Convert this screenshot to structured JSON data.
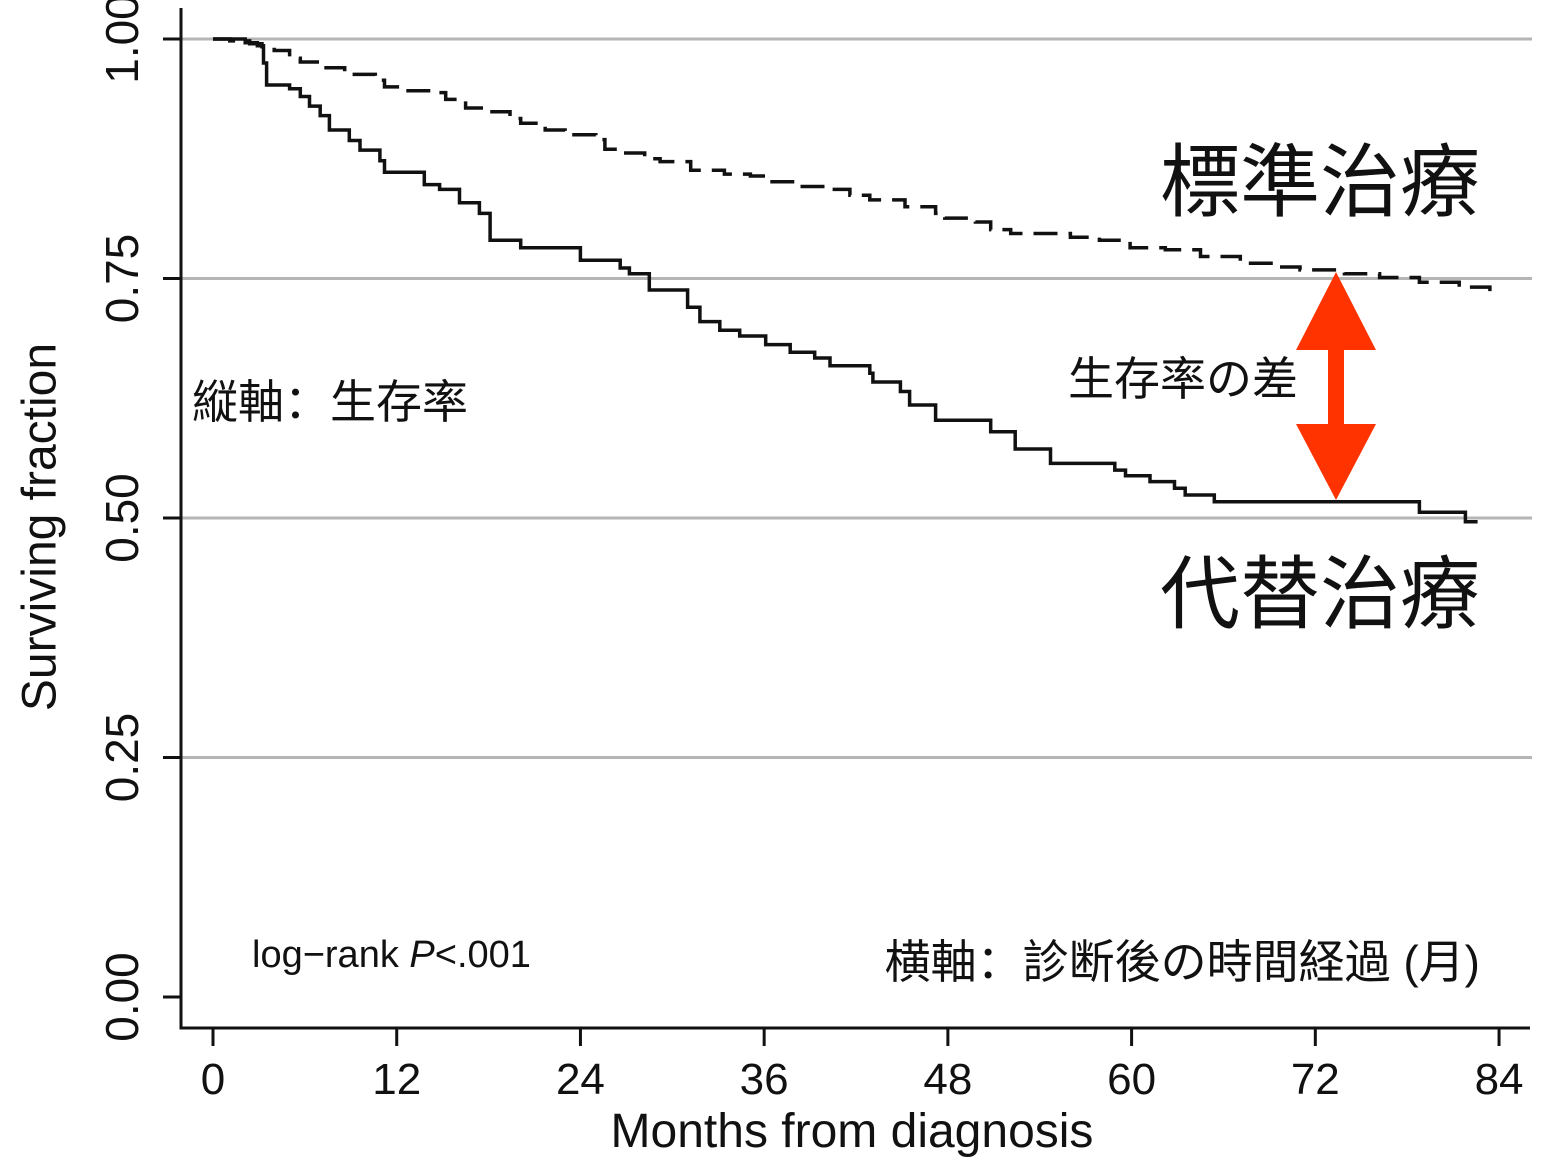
{
  "colors": {
    "background": "#ffffff",
    "axis": "#111111",
    "grid": "#b5b5b5",
    "series_line": "#111111",
    "arrow": "#ff3300"
  },
  "chart_data": {
    "type": "line",
    "step": true,
    "title": "",
    "xlabel": "Months from diagnosis",
    "ylabel": "Surviving fraction",
    "xticks": [
      "0",
      "12",
      "24",
      "36",
      "48",
      "60",
      "72",
      "84"
    ],
    "yticks": [
      "0.00",
      "0.25",
      "0.50",
      "0.75",
      "1.00"
    ],
    "xlim": [
      0,
      84
    ],
    "ylim": [
      0,
      1
    ],
    "grid": "horizontal",
    "legend": "none",
    "series": [
      {
        "name": "標準治療",
        "line_style": "dashed",
        "points": [
          [
            0,
            1.0
          ],
          [
            1.1,
            0.998
          ],
          [
            2.4,
            0.995
          ],
          [
            3.2,
            0.992
          ],
          [
            4.0,
            0.988
          ],
          [
            5.0,
            0.98
          ],
          [
            5.7,
            0.976
          ],
          [
            7.0,
            0.97
          ],
          [
            8.6,
            0.963
          ],
          [
            10.6,
            0.957
          ],
          [
            11.2,
            0.95
          ],
          [
            12.2,
            0.946
          ],
          [
            14.2,
            0.944
          ],
          [
            15.2,
            0.937
          ],
          [
            16.5,
            0.928
          ],
          [
            18.1,
            0.924
          ],
          [
            19.4,
            0.917
          ],
          [
            20.1,
            0.912
          ],
          [
            21.7,
            0.905
          ],
          [
            23.0,
            0.9
          ],
          [
            25.0,
            0.895
          ],
          [
            25.6,
            0.885
          ],
          [
            26.6,
            0.881
          ],
          [
            28.2,
            0.875
          ],
          [
            29.2,
            0.872
          ],
          [
            31.2,
            0.863
          ],
          [
            33.4,
            0.859
          ],
          [
            35.1,
            0.857
          ],
          [
            36.4,
            0.851
          ],
          [
            38.3,
            0.846
          ],
          [
            40.3,
            0.843
          ],
          [
            41.6,
            0.837
          ],
          [
            42.9,
            0.832
          ],
          [
            45.2,
            0.825
          ],
          [
            47.2,
            0.818
          ],
          [
            47.8,
            0.813
          ],
          [
            49.8,
            0.809
          ],
          [
            50.8,
            0.801
          ],
          [
            52.1,
            0.797
          ],
          [
            56.0,
            0.793
          ],
          [
            57.9,
            0.79
          ],
          [
            59.9,
            0.782
          ],
          [
            62.2,
            0.78
          ],
          [
            64.5,
            0.773
          ],
          [
            67.1,
            0.766
          ],
          [
            69.4,
            0.762
          ],
          [
            71.0,
            0.759
          ],
          [
            73.9,
            0.755
          ],
          [
            76.2,
            0.751
          ],
          [
            78.8,
            0.746
          ],
          [
            81.4,
            0.741
          ],
          [
            83.4,
            0.735
          ],
          [
            83.9,
            0.735
          ]
        ]
      },
      {
        "name": "代替治療",
        "line_style": "solid",
        "points": [
          [
            0,
            1.0
          ],
          [
            2.1,
            0.996
          ],
          [
            2.9,
            0.993
          ],
          [
            3.3,
            0.975
          ],
          [
            3.5,
            0.952
          ],
          [
            5.0,
            0.948
          ],
          [
            5.7,
            0.94
          ],
          [
            6.3,
            0.93
          ],
          [
            7.0,
            0.92
          ],
          [
            7.6,
            0.905
          ],
          [
            8.9,
            0.894
          ],
          [
            9.6,
            0.884
          ],
          [
            10.9,
            0.873
          ],
          [
            11.2,
            0.861
          ],
          [
            13.8,
            0.848
          ],
          [
            14.8,
            0.843
          ],
          [
            16.1,
            0.829
          ],
          [
            17.4,
            0.818
          ],
          [
            18.1,
            0.79
          ],
          [
            20.1,
            0.782
          ],
          [
            24.0,
            0.769
          ],
          [
            26.6,
            0.761
          ],
          [
            27.2,
            0.755
          ],
          [
            28.5,
            0.738
          ],
          [
            31.0,
            0.72
          ],
          [
            31.8,
            0.705
          ],
          [
            33.1,
            0.696
          ],
          [
            34.4,
            0.69
          ],
          [
            36.1,
            0.681
          ],
          [
            37.7,
            0.673
          ],
          [
            39.3,
            0.667
          ],
          [
            40.3,
            0.659
          ],
          [
            42.9,
            0.651
          ],
          [
            43.1,
            0.642
          ],
          [
            44.9,
            0.632
          ],
          [
            45.5,
            0.618
          ],
          [
            47.2,
            0.602
          ],
          [
            50.8,
            0.59
          ],
          [
            52.4,
            0.572
          ],
          [
            54.7,
            0.557
          ],
          [
            58.9,
            0.55
          ],
          [
            59.6,
            0.544
          ],
          [
            61.2,
            0.538
          ],
          [
            62.8,
            0.531
          ],
          [
            63.5,
            0.524
          ],
          [
            65.4,
            0.517
          ],
          [
            78.8,
            0.506
          ],
          [
            81.8,
            0.496
          ],
          [
            82.6,
            0.496
          ]
        ]
      }
    ],
    "annotations": {
      "y_axis_note": "縦軸：生存率",
      "difference_note": "生存率の差",
      "x_axis_note": "横軸：診断後の時間経過 (月)",
      "test": {
        "prefix": "log−rank ",
        "italic": "P",
        "suffix": "<.001"
      }
    }
  }
}
